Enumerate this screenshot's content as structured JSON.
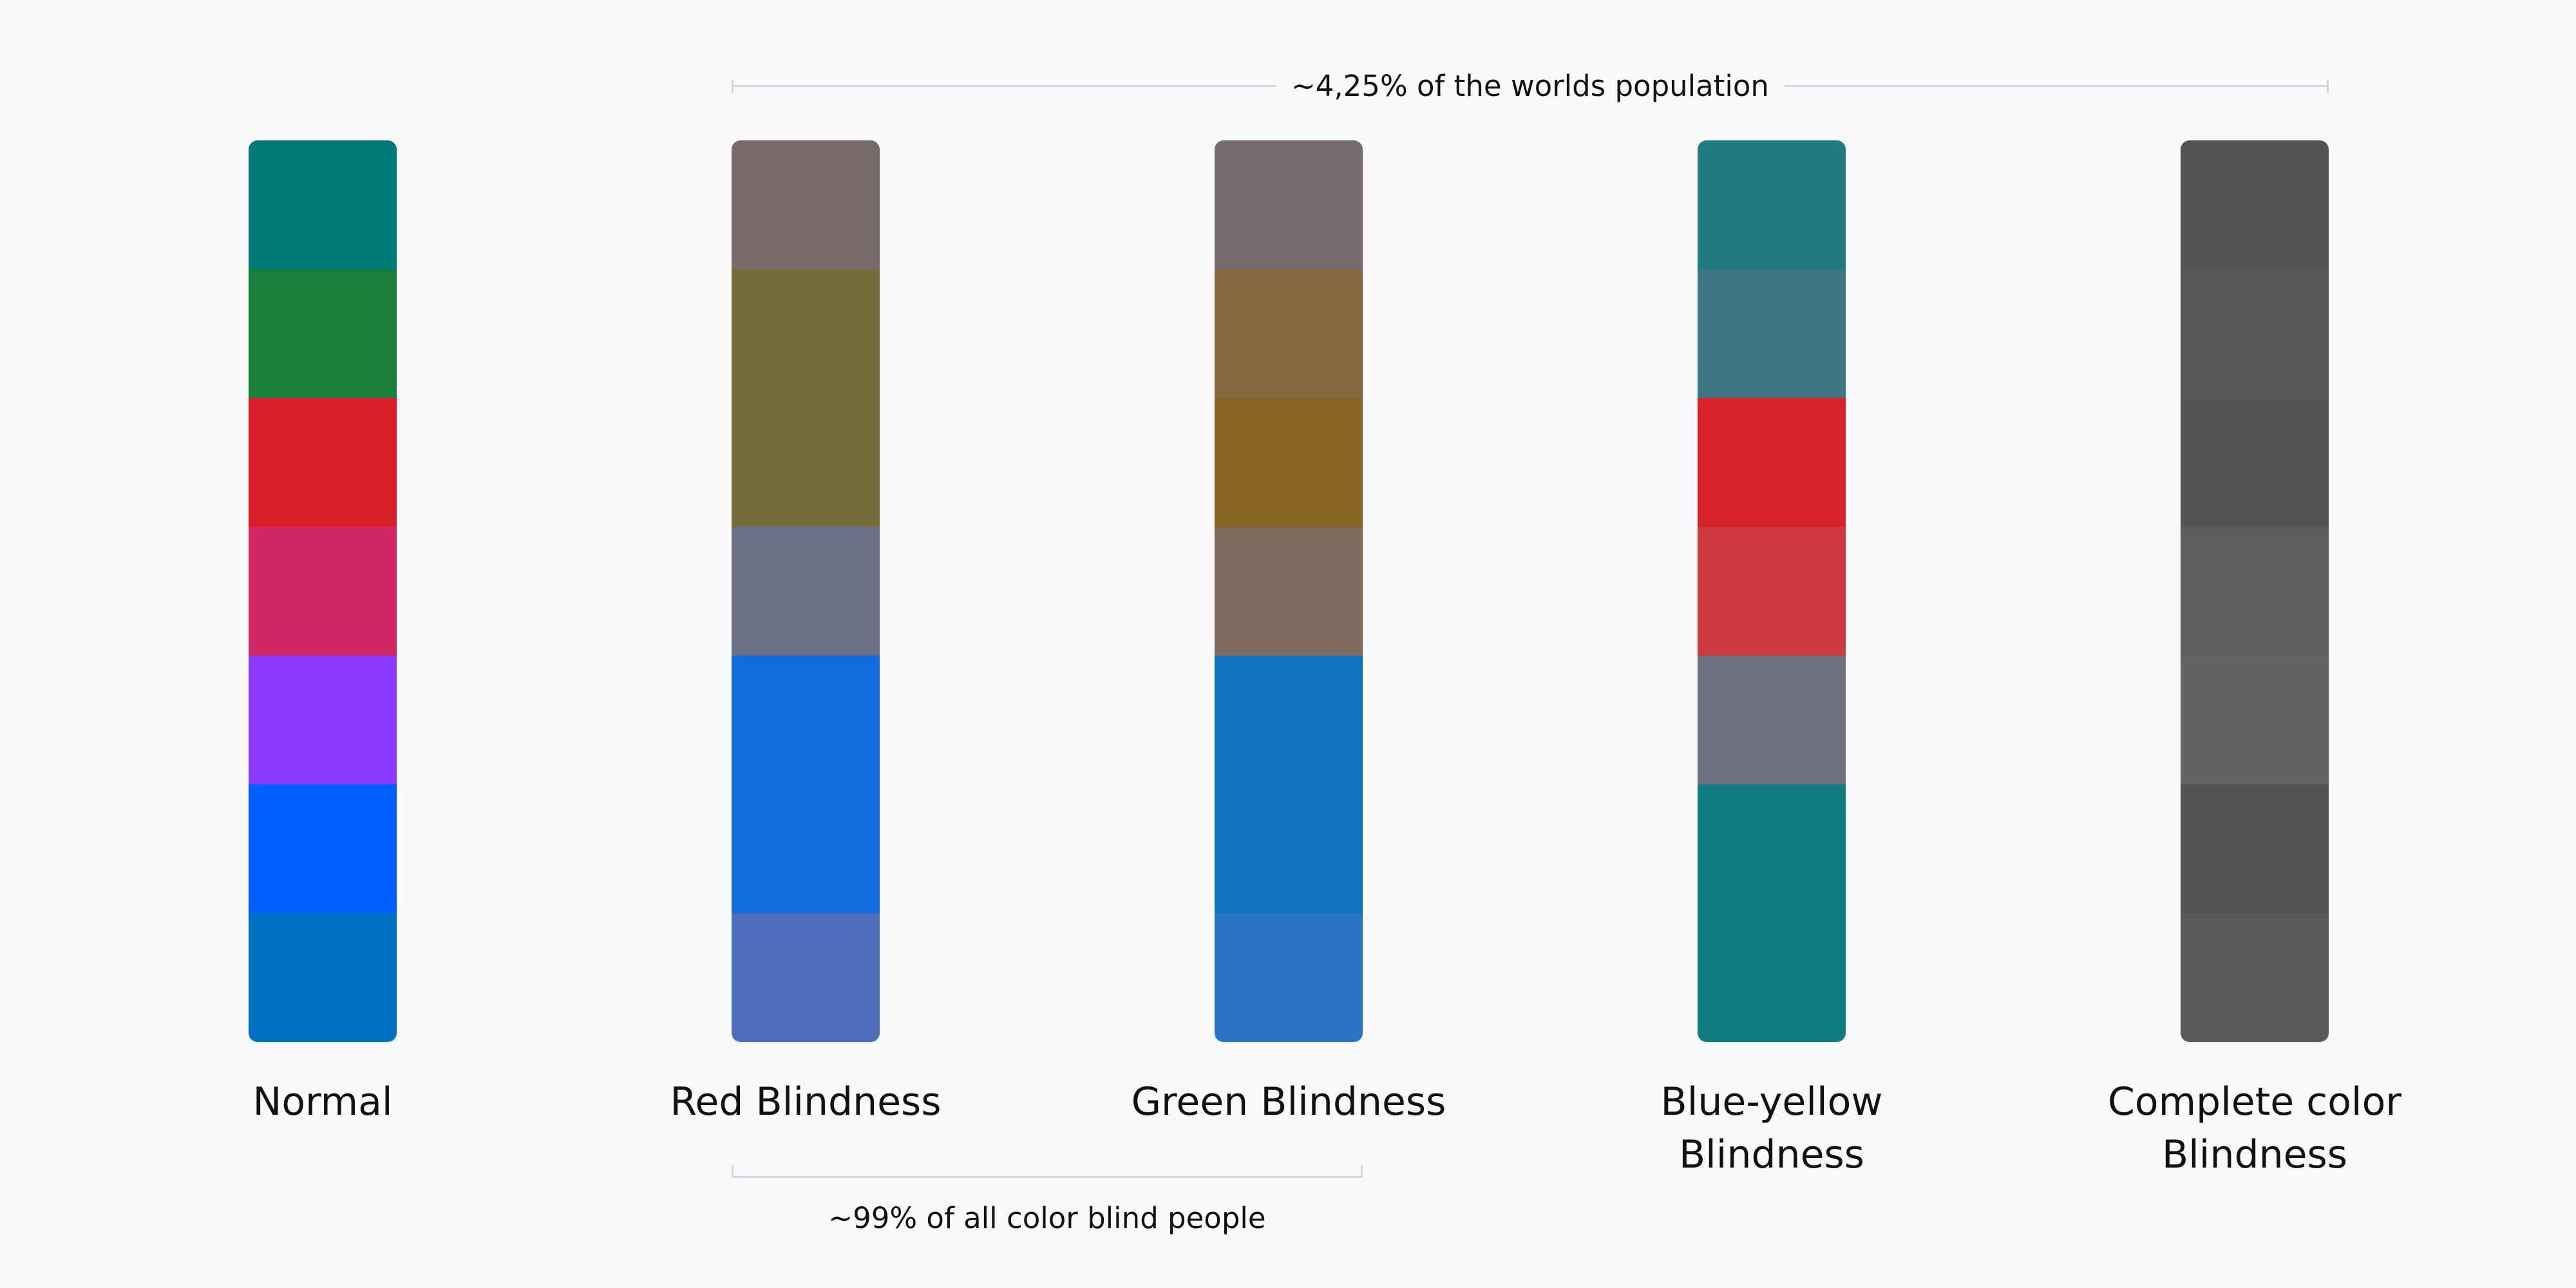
{
  "top_annotation": {
    "text": "~4,25% of the worlds population"
  },
  "bottom_annotation": {
    "text": "~99% of all color blind people"
  },
  "columns": [
    {
      "label": "Normal",
      "colors": [
        "#007b78",
        "#1a7f3b",
        "#d81f29",
        "#d02765",
        "#8a3bff",
        "#0060ff",
        "#0070c4"
      ]
    },
    {
      "label": "Red Blindness",
      "colors": [
        "#766b6a",
        "#766c38",
        "#766c38",
        "#6b7087",
        "#126ddd",
        "#126ddd",
        "#4e6dbb"
      ]
    },
    {
      "label": "Green Blindness",
      "colors": [
        "#776c6d",
        "#856942",
        "#88661f",
        "#806b5e",
        "#1073bf",
        "#1073bf",
        "#2a73c3"
      ]
    },
    {
      "label": "Blue-yellow Blindness",
      "colors": [
        "#207b82",
        "#3d7681",
        "#d82229",
        "#cf383c",
        "#6c7080",
        "#0f7c82",
        "#0f7c82"
      ]
    },
    {
      "label": "Complete color Blindness",
      "colors": [
        "#545454",
        "#585858",
        "#545454",
        "#5d5d5d",
        "#646262",
        "#545454",
        "#595959"
      ]
    }
  ]
}
